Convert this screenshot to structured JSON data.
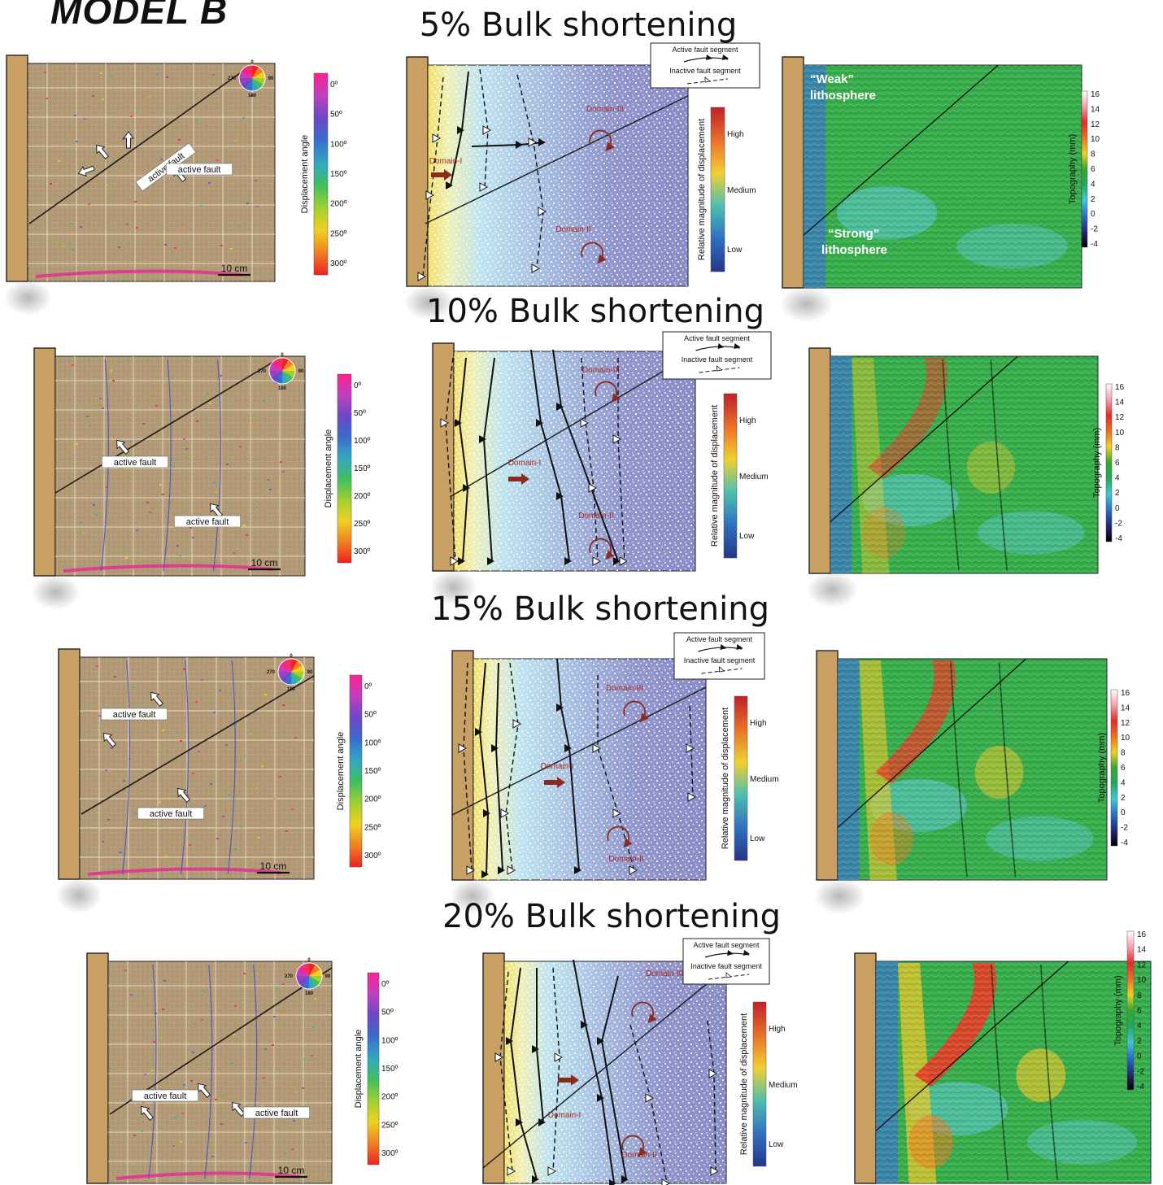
{
  "figure": {
    "model_title": "MODEL B",
    "stages": [
      {
        "title": "5% Bulk shortening",
        "panel_a": {
          "labels": [
            "active fault",
            "active fault"
          ],
          "scale": "10 cm"
        },
        "panel_b": {
          "domains": [
            "Domain-I",
            "Domain-II",
            "Domain-III"
          ]
        },
        "panel_c": {
          "annotations": [
            "“Weak”",
            "lithosphere",
            "“Strong”",
            "lithosphere"
          ]
        }
      },
      {
        "title": "10% Bulk shortening",
        "panel_a": {
          "labels": [
            "active fault",
            "active fault"
          ],
          "scale": "10 cm"
        },
        "panel_b": {
          "domains": [
            "Domain-I",
            "Domain-II",
            "Domain-III"
          ]
        },
        "panel_c": {
          "annotations": []
        }
      },
      {
        "title": "15% Bulk shortening",
        "panel_a": {
          "labels": [
            "active fault",
            "active fault"
          ],
          "scale": "10 cm"
        },
        "panel_b": {
          "domains": [
            "Domain-I",
            "Domain-II",
            "Domain-III"
          ]
        },
        "panel_c": {
          "annotations": []
        }
      },
      {
        "title": "20% Bulk shortening",
        "panel_a": {
          "labels": [
            "active fault",
            "active fault"
          ],
          "scale": "10 cm"
        },
        "panel_b": {
          "domains": [
            "Domain-I",
            "Domain-II",
            "Domain-III"
          ]
        },
        "panel_c": {
          "annotations": []
        }
      }
    ],
    "angle_colorbar": {
      "title": "Displacement angle",
      "ticks": [
        "0º",
        "50º",
        "100º",
        "150º",
        "200º",
        "250º",
        "300º"
      ],
      "colors": [
        "#ff2090",
        "#c03fc0",
        "#6b48c8",
        "#3a6cd0",
        "#32a8c0",
        "#3fbf60",
        "#a0d030",
        "#f2d020",
        "#f08020",
        "#ee2222"
      ]
    },
    "magnitude_colorbar": {
      "title": "Relative magnitude of displacement",
      "ticks": [
        "High",
        "Medium",
        "Low"
      ],
      "colors": [
        "#c0202a",
        "#e8702a",
        "#f2d030",
        "#4cbfb0",
        "#3070c0",
        "#24368a"
      ]
    },
    "topography_colorbar": {
      "title": "Topography (mm)",
      "ticks": [
        "16",
        "14",
        "12",
        "10",
        "8",
        "6",
        "4",
        "2",
        "0",
        "-2",
        "-4"
      ],
      "colors": [
        "#ffffff",
        "#f6a0a8",
        "#e82828",
        "#ee7020",
        "#f0d020",
        "#34a830",
        "#20a860",
        "#40c8d8",
        "#2a6cc8",
        "#242878",
        "#000000"
      ]
    },
    "fault_legend": {
      "active": "Active fault segment",
      "inactive": "Inactive fault segment"
    },
    "compass_wheel": {
      "labels": [
        "0",
        "90",
        "180",
        "270"
      ],
      "colors": [
        "#ee2222",
        "#f08020",
        "#f2d020",
        "#a0d030",
        "#3fbf60",
        "#32a8c0",
        "#3a6cd0",
        "#6b48c8",
        "#9a40c0",
        "#c03fc0",
        "#ff2090",
        "#f03060"
      ]
    },
    "colors": {
      "backstop": "#c8a064",
      "sand": "#b39a76",
      "grid_line": "#e4d5bc",
      "fault_line": "#1a1a1a",
      "domain_arrow": "#8b2a1f",
      "field_base": "#8c8fca"
    }
  }
}
